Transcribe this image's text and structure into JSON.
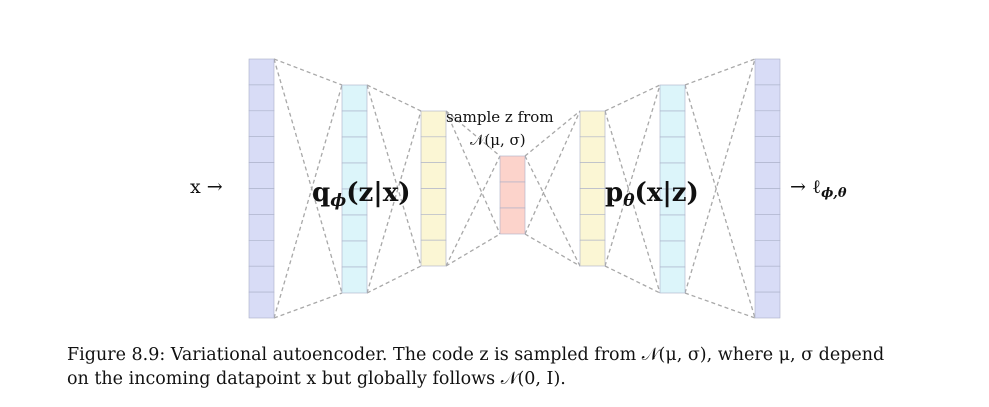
{
  "labels": {
    "input": "x →",
    "output": "→ ℓ",
    "output_subscript": "ϕ,θ",
    "encoder": "q",
    "encoder_subscript": "ϕ",
    "encoder_rest": "(z|x)",
    "decoder": "p",
    "decoder_subscript": "θ",
    "decoder_rest": "(x|z)",
    "sample_line1": "sample z from",
    "sample_line2": "𝒩(μ, σ)"
  },
  "colors": {
    "input_layer": "#d8dcf6",
    "encoder_hidden": "#dcf5fa",
    "encoder_out": "#fbf6d4",
    "latent": "#fcd3cb",
    "decoder_in": "#fbf6d4",
    "decoder_hidden": "#dcf5fa",
    "output_layer": "#d8dcf6",
    "connection": "#a8a8a8",
    "cell_border": "#aab0c8"
  },
  "layers": [
    {
      "name": "input-layer",
      "units": 10,
      "color_key": "input_layer"
    },
    {
      "name": "encoder-hidden-layer",
      "units": 8,
      "color_key": "encoder_hidden"
    },
    {
      "name": "encoder-output-layer",
      "units": 6,
      "color_key": "encoder_out"
    },
    {
      "name": "latent-layer",
      "units": 3,
      "color_key": "latent"
    },
    {
      "name": "decoder-input-layer",
      "units": 6,
      "color_key": "decoder_in"
    },
    {
      "name": "decoder-hidden-layer",
      "units": 8,
      "color_key": "decoder_hidden"
    },
    {
      "name": "output-layer",
      "units": 10,
      "color_key": "output_layer"
    }
  ],
  "caption": {
    "line1": "Figure 8.9: Variational autoencoder. The code z is sampled from 𝒩(μ, σ), where μ, σ depend",
    "line2": "on the incoming datapoint x but globally follows 𝒩(0, I)."
  }
}
